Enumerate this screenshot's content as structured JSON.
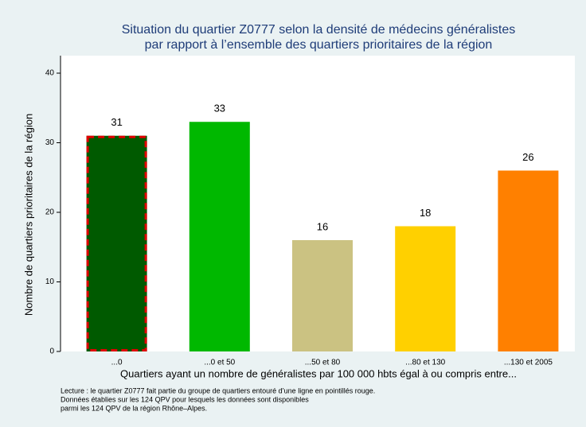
{
  "chart_data": {
    "type": "bar",
    "title": [
      "Situation du quartier Z0777 selon la densité de médecins généralistes",
      "par rapport à l’ensemble des quartiers prioritaires de la région"
    ],
    "x_label": "Quartiers ayant un nombre de généralistes par 100 000 hbts égal à ou compris entre...",
    "y_label": "Nombre de quartiers prioritaires de la région",
    "categories": [
      "...0",
      "...0 et 50",
      "...50 et 80",
      "...80 et 130",
      "...130 et 2005"
    ],
    "values": [
      31,
      33,
      16,
      18,
      26
    ],
    "colors": [
      "#005a00",
      "#00b800",
      "#cbc282",
      "#ffd000",
      "#ff8000"
    ],
    "highlight_index": 0,
    "highlight_color": "#e00000",
    "ylim": [
      0,
      40
    ],
    "yticks": [
      0,
      10,
      20,
      30,
      40
    ],
    "notes": [
      "Lecture : le quartier Z0777 fait partie du groupe de quartiers entouré d’une ligne en pointillés rouge.",
      "Données établies sur les 124 QPV pour lesquels les données sont disponibles",
      "parmi les 124 QPV de la région Rhône–Alpes."
    ]
  }
}
